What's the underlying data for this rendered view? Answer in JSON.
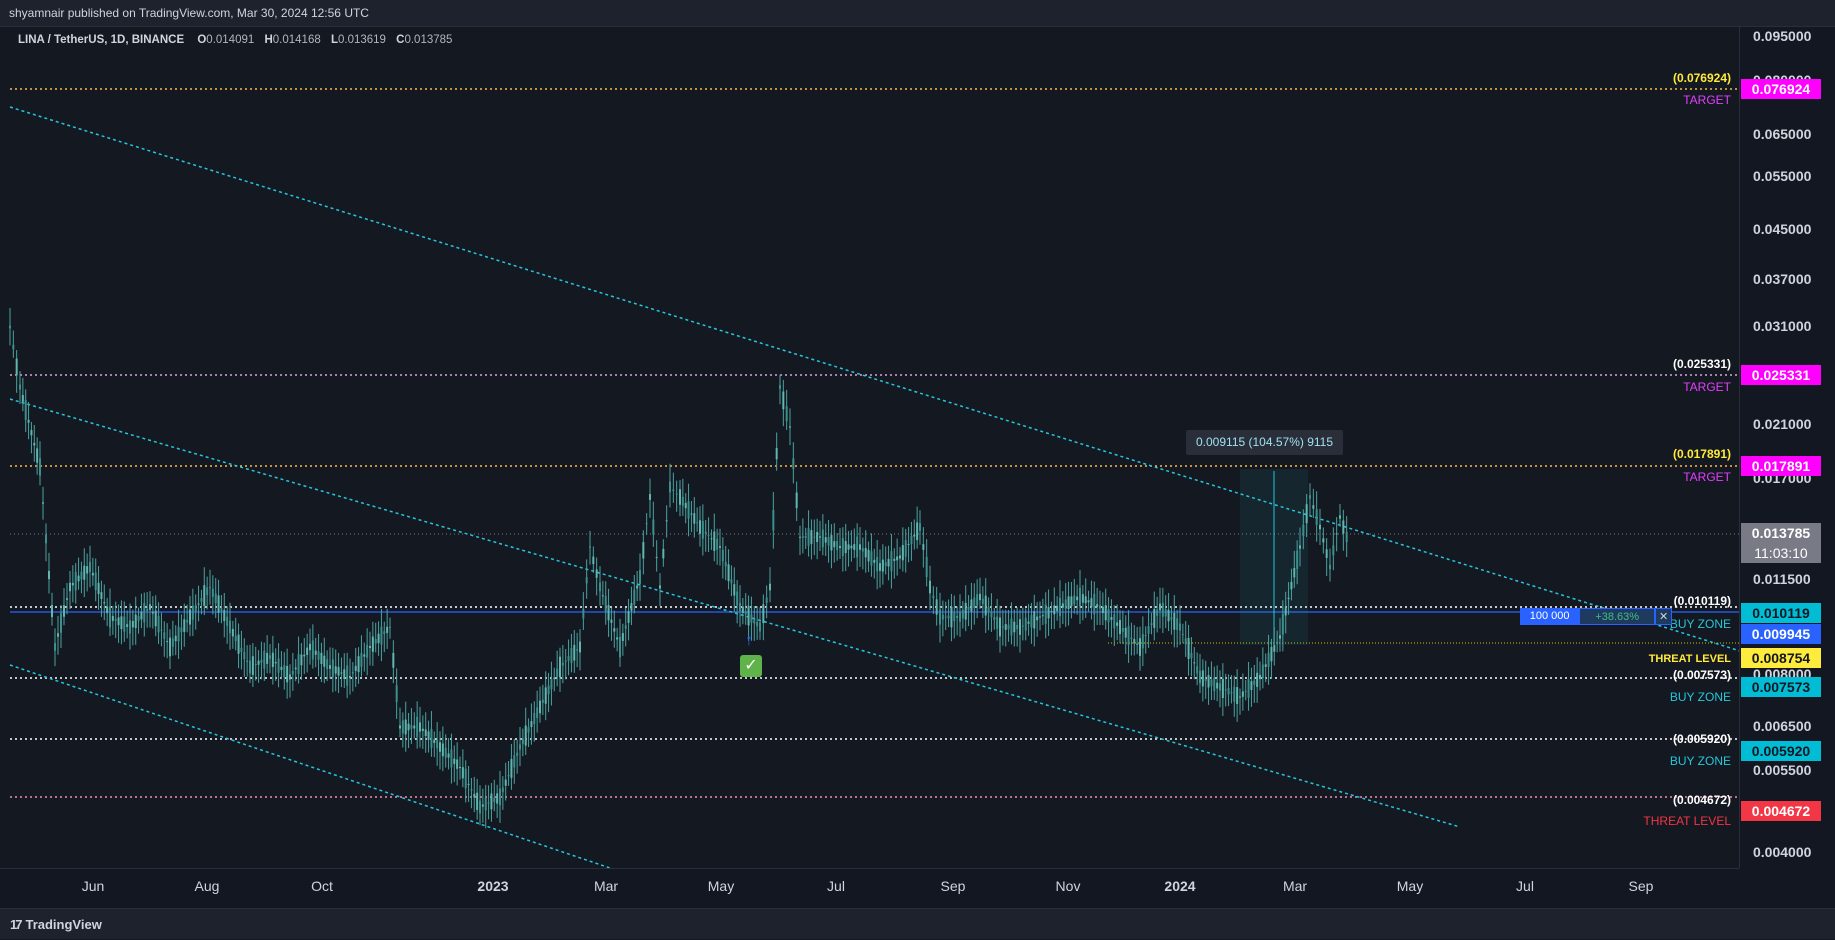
{
  "header": {
    "published_text": "shyamnair published on TradingView.com, Mar 30, 2024 12:56 UTC"
  },
  "legend": {
    "symbol": "LINA / TetherUS, 1D, BINANCE",
    "o_label": "O",
    "o_value": "0.014091",
    "h_label": "H",
    "h_value": "0.014168",
    "l_label": "L",
    "l_value": "0.013619",
    "c_label": "C",
    "c_value": "0.013785"
  },
  "price_ticks": [
    "0.095000",
    "0.080000",
    "0.065000",
    "0.055000",
    "0.045000",
    "0.037000",
    "0.031000",
    "0.021000",
    "0.017000",
    "0.011500",
    "0.008000",
    "0.006500",
    "0.005500",
    "0.004000"
  ],
  "price_badges": {
    "target_1": "0.076924",
    "target_2": "0.025331",
    "target_3": "0.017891",
    "last_price": "0.013785",
    "countdown": "11:03:10",
    "buy_zone_1": "0.010119",
    "entry": "0.009945",
    "threat_level_1": "0.008754",
    "buy_zone_2": "0.007573",
    "buy_zone_3": "0.005920",
    "threat_level_2": "0.004672"
  },
  "levels": [
    {
      "value": "(0.076924)",
      "name": "TARGET"
    },
    {
      "value": "(0.025331)",
      "name": "TARGET"
    },
    {
      "value": "(0.017891)",
      "name": "TARGET"
    },
    {
      "value": "(0.010119)",
      "name": "BUY ZONE"
    },
    {
      "value": "",
      "name": "THREAT LEVEL"
    },
    {
      "value": "(0.007573)",
      "name": "BUY ZONE"
    },
    {
      "value": "(0.005920)",
      "name": "BUY ZONE"
    },
    {
      "value": "(0.004672)",
      "name": "THREAT LEVEL"
    }
  ],
  "time_labels": [
    "Jun",
    "Aug",
    "Oct",
    "2023",
    "Mar",
    "May",
    "Jul",
    "Sep",
    "Nov",
    "2024",
    "Mar",
    "May",
    "Jul",
    "Sep"
  ],
  "measure_label": "0.009115 (104.57%) 9115",
  "position": {
    "qty": "100 000",
    "pnl": "+38.63%",
    "close": "✕"
  },
  "footer": {
    "brand": "TradingView",
    "logo_icon": "tradingview-logo-icon"
  },
  "colors": {
    "background": "#131722",
    "target_badge": "#ff00ff",
    "buy_zone_badge": "#00bcd4",
    "threat_badge_1": "#ffeb3b",
    "threat_badge_2": "#f23645",
    "entry_badge": "#2962ff",
    "trendline": "#26c6da",
    "candle": "#4ba3a0"
  }
}
